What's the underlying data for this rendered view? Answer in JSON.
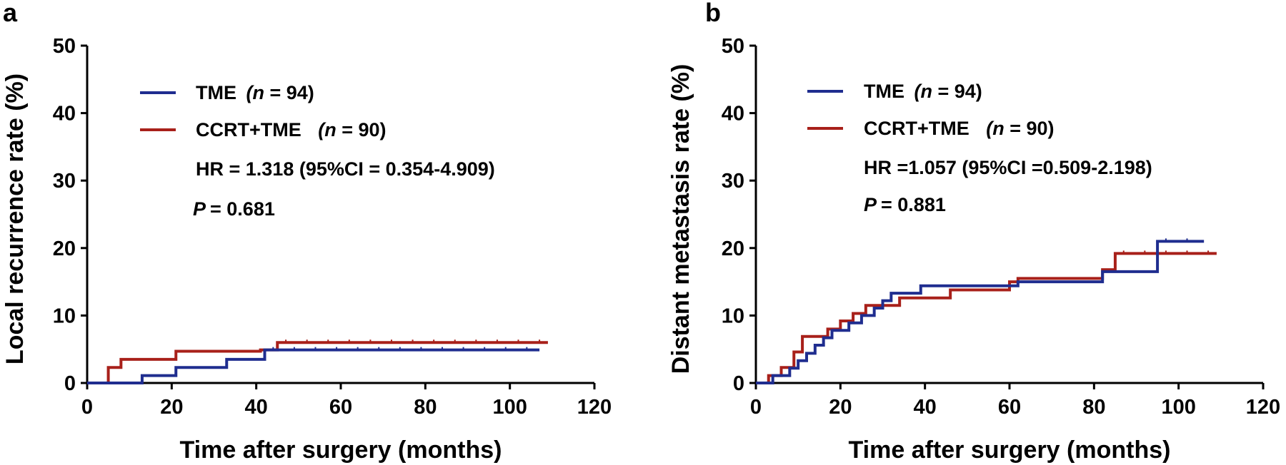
{
  "chart_data": [
    {
      "type": "line",
      "step": true,
      "panel": "a",
      "xlabel": "Time after surgery (months)",
      "ylabel": "Local recurrence rate (%)",
      "xlim": [
        0,
        120
      ],
      "ylim": [
        0,
        50
      ],
      "xticks": [
        0,
        20,
        40,
        60,
        80,
        100,
        120
      ],
      "yticks": [
        0,
        10,
        20,
        30,
        40,
        50
      ],
      "grid": false,
      "legend_position": "top-left",
      "series": [
        {
          "name": "TME",
          "n_label": "(n = 94)",
          "color": "#1f2d8f",
          "x": [
            0,
            13,
            17,
            21,
            28,
            33,
            42,
            107
          ],
          "y": [
            0,
            1.1,
            1.1,
            2.3,
            2.3,
            3.5,
            4.9,
            4.9
          ]
        },
        {
          "name": "CCRT+TME",
          "n_label": "(n = 90)",
          "color": "#a8201a",
          "x": [
            0,
            5,
            8,
            21,
            32,
            41,
            45,
            109
          ],
          "y": [
            0,
            2.3,
            3.5,
            4.7,
            4.7,
            4.9,
            6.0,
            6.0
          ]
        }
      ],
      "annotations": [
        "HR = 1.318 (95%CI = 0.354-4.909)",
        "P = 0.681"
      ]
    },
    {
      "type": "line",
      "step": true,
      "panel": "b",
      "xlabel": "Time after surgery (months)",
      "ylabel": "Distant  metastasis rate (%)",
      "xlim": [
        0,
        120
      ],
      "ylim": [
        0,
        50
      ],
      "xticks": [
        0,
        20,
        40,
        60,
        80,
        100,
        120
      ],
      "yticks": [
        0,
        10,
        20,
        30,
        40,
        50
      ],
      "grid": false,
      "legend_position": "top-left",
      "series": [
        {
          "name": "TME",
          "n_label": "(n = 94)",
          "color": "#1f2d8f",
          "x": [
            0,
            4,
            8,
            10,
            12,
            14,
            16,
            18,
            20,
            22,
            25,
            28,
            30,
            32,
            36,
            39,
            41,
            60,
            62,
            80,
            82,
            95,
            106
          ],
          "y": [
            0,
            1.1,
            2.2,
            3.3,
            4.4,
            5.6,
            6.7,
            7.8,
            7.8,
            8.9,
            10.0,
            11.1,
            12.2,
            13.3,
            13.3,
            14.4,
            14.4,
            14.4,
            15.0,
            15.0,
            16.5,
            21.0,
            21.0
          ]
        },
        {
          "name": "CCRT+TME",
          "n_label": "(n = 90)",
          "color": "#a8201a",
          "x": [
            0,
            3,
            6,
            9,
            11,
            13,
            17,
            20,
            23,
            26,
            30,
            34,
            46,
            60,
            62,
            82,
            85,
            109
          ],
          "y": [
            0,
            1.1,
            2.3,
            4.6,
            6.9,
            6.9,
            8.0,
            9.2,
            10.3,
            11.5,
            11.5,
            12.6,
            13.8,
            15.0,
            15.5,
            16.8,
            19.2,
            19.2
          ]
        }
      ],
      "annotations": [
        "HR =1.057 (95%CI =0.509-2.198)",
        "P = 0.881"
      ]
    }
  ],
  "panels": {
    "a": {
      "letter": "a",
      "legend_tme_name": "TME",
      "legend_tme_n": "(n = 94)",
      "legend_ccrt_name": "CCRT+TME",
      "legend_ccrt_n": "(n = 90)",
      "hr_text": "HR = 1.318 (95%CI = 0.354-4.909)",
      "p_value": "= 0.681"
    },
    "b": {
      "letter": "b",
      "legend_tme_name": "TME",
      "legend_tme_n": "(n = 94)",
      "legend_ccrt_name": "CCRT+TME",
      "legend_ccrt_n": "(n = 90)",
      "hr_text": "HR =1.057 (95%CI =0.509-2.198)",
      "p_value": "= 0.881"
    }
  }
}
